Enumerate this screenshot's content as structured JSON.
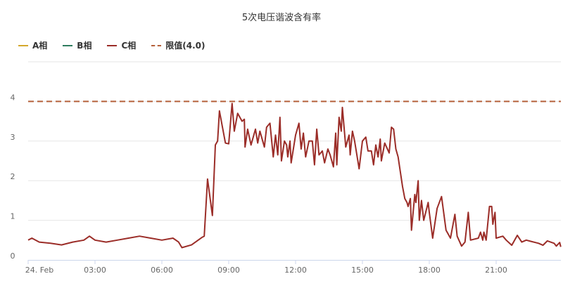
{
  "chart_data": {
    "type": "line",
    "title": "5次电压谐波含有率",
    "xlabel": "",
    "ylabel": "",
    "ylim": [
      0,
      5
    ],
    "yticks": [
      "0",
      "1",
      "2",
      "3",
      "4"
    ],
    "xticks": [
      "24. Feb",
      "03:00",
      "06:00",
      "09:00",
      "12:00",
      "15:00",
      "18:00",
      "21:00"
    ],
    "grid": true,
    "legend_placement": "top-left",
    "legend": [
      {
        "name": "A相",
        "color": "#d4a82c",
        "style": "solid"
      },
      {
        "name": "B相",
        "color": "#2f7d5f",
        "style": "solid"
      },
      {
        "name": "C相",
        "color": "#9b2d28",
        "style": "solid"
      },
      {
        "name": "限值(4.0)",
        "color": "#b5603a",
        "style": "dashed"
      }
    ],
    "limit": 4.0,
    "series": [
      {
        "name": "C相",
        "color": "#9b2d28",
        "points": [
          [
            "00:00",
            0.5
          ],
          [
            "00:10",
            0.55
          ],
          [
            "00:30",
            0.45
          ],
          [
            "01:00",
            0.42
          ],
          [
            "01:30",
            0.38
          ],
          [
            "02:00",
            0.45
          ],
          [
            "02:30",
            0.5
          ],
          [
            "02:45",
            0.6
          ],
          [
            "03:00",
            0.5
          ],
          [
            "03:30",
            0.45
          ],
          [
            "04:00",
            0.5
          ],
          [
            "04:30",
            0.55
          ],
          [
            "05:00",
            0.6
          ],
          [
            "05:30",
            0.55
          ],
          [
            "06:00",
            0.5
          ],
          [
            "06:30",
            0.55
          ],
          [
            "06:45",
            0.45
          ],
          [
            "06:54",
            0.31
          ],
          [
            "07:20",
            0.38
          ],
          [
            "07:48",
            0.57
          ],
          [
            "07:54",
            0.6
          ],
          [
            "08:03",
            2.04
          ],
          [
            "08:16",
            1.12
          ],
          [
            "08:24",
            2.9
          ],
          [
            "08:30",
            3.0
          ],
          [
            "08:35",
            3.76
          ],
          [
            "08:51",
            2.95
          ],
          [
            "09:00",
            2.93
          ],
          [
            "09:09",
            3.95
          ],
          [
            "09:15",
            3.25
          ],
          [
            "09:24",
            3.7
          ],
          [
            "09:36",
            3.5
          ],
          [
            "09:42",
            3.55
          ],
          [
            "09:44",
            2.85
          ],
          [
            "09:51",
            3.3
          ],
          [
            "10:00",
            2.9
          ],
          [
            "10:12",
            3.3
          ],
          [
            "10:18",
            2.95
          ],
          [
            "10:24",
            3.25
          ],
          [
            "10:36",
            2.85
          ],
          [
            "10:42",
            3.35
          ],
          [
            "10:51",
            3.45
          ],
          [
            "11:00",
            2.6
          ],
          [
            "11:06",
            3.15
          ],
          [
            "11:12",
            2.65
          ],
          [
            "11:18",
            3.6
          ],
          [
            "11:22",
            2.5
          ],
          [
            "11:30",
            3.0
          ],
          [
            "11:36",
            2.9
          ],
          [
            "11:39",
            2.6
          ],
          [
            "11:45",
            3.0
          ],
          [
            "11:48",
            2.45
          ],
          [
            "12:00",
            3.15
          ],
          [
            "12:09",
            3.45
          ],
          [
            "12:15",
            2.8
          ],
          [
            "12:21",
            3.2
          ],
          [
            "12:27",
            2.6
          ],
          [
            "12:36",
            3.0
          ],
          [
            "12:45",
            3.0
          ],
          [
            "12:51",
            2.4
          ],
          [
            "12:57",
            3.3
          ],
          [
            "13:03",
            2.65
          ],
          [
            "13:12",
            2.75
          ],
          [
            "13:18",
            2.45
          ],
          [
            "13:27",
            2.8
          ],
          [
            "13:33",
            2.65
          ],
          [
            "13:42",
            2.35
          ],
          [
            "13:48",
            3.2
          ],
          [
            "13:51",
            2.4
          ],
          [
            "13:57",
            3.6
          ],
          [
            "14:03",
            3.25
          ],
          [
            "14:06",
            3.85
          ],
          [
            "14:15",
            2.85
          ],
          [
            "14:24",
            3.15
          ],
          [
            "14:27",
            2.65
          ],
          [
            "14:33",
            3.25
          ],
          [
            "14:39",
            3.0
          ],
          [
            "14:51",
            2.3
          ],
          [
            "15:00",
            3.0
          ],
          [
            "15:09",
            3.1
          ],
          [
            "15:15",
            2.75
          ],
          [
            "15:24",
            2.75
          ],
          [
            "15:30",
            2.4
          ],
          [
            "15:36",
            2.9
          ],
          [
            "15:42",
            2.6
          ],
          [
            "15:48",
            3.05
          ],
          [
            "15:51",
            2.5
          ],
          [
            "16:00",
            2.95
          ],
          [
            "16:12",
            2.7
          ],
          [
            "16:18",
            3.35
          ],
          [
            "16:24",
            3.3
          ],
          [
            "16:30",
            2.8
          ],
          [
            "16:36",
            2.6
          ],
          [
            "16:48",
            1.85
          ],
          [
            "16:54",
            1.55
          ],
          [
            "17:00",
            1.45
          ],
          [
            "17:03",
            1.35
          ],
          [
            "17:09",
            1.55
          ],
          [
            "17:12",
            0.75
          ],
          [
            "17:21",
            1.65
          ],
          [
            "17:24",
            1.45
          ],
          [
            "17:30",
            2.0
          ],
          [
            "17:33",
            1.0
          ],
          [
            "17:39",
            1.5
          ],
          [
            "17:45",
            1.0
          ],
          [
            "17:57",
            1.45
          ],
          [
            "18:00",
            1.2
          ],
          [
            "18:09",
            0.55
          ],
          [
            "18:21",
            1.3
          ],
          [
            "18:33",
            1.6
          ],
          [
            "18:45",
            0.75
          ],
          [
            "18:57",
            0.55
          ],
          [
            "19:09",
            1.15
          ],
          [
            "19:15",
            0.6
          ],
          [
            "19:27",
            0.35
          ],
          [
            "19:36",
            0.45
          ],
          [
            "19:45",
            1.2
          ],
          [
            "19:51",
            0.5
          ],
          [
            "20:12",
            0.55
          ],
          [
            "20:18",
            0.7
          ],
          [
            "20:24",
            0.5
          ],
          [
            "20:27",
            0.7
          ],
          [
            "20:33",
            0.5
          ],
          [
            "20:42",
            1.35
          ],
          [
            "20:48",
            1.35
          ],
          [
            "20:51",
            0.9
          ],
          [
            "20:57",
            1.2
          ],
          [
            "21:00",
            0.55
          ],
          [
            "21:18",
            0.6
          ],
          [
            "21:27",
            0.5
          ],
          [
            "21:42",
            0.37
          ],
          [
            "21:57",
            0.62
          ],
          [
            "22:09",
            0.45
          ],
          [
            "22:21",
            0.5
          ],
          [
            "22:33",
            0.47
          ],
          [
            "22:54",
            0.42
          ],
          [
            "23:06",
            0.37
          ],
          [
            "23:18",
            0.48
          ],
          [
            "23:36",
            0.42
          ],
          [
            "23:42",
            0.35
          ],
          [
            "23:51",
            0.44
          ],
          [
            "23:54",
            0.33
          ]
        ]
      }
    ]
  }
}
